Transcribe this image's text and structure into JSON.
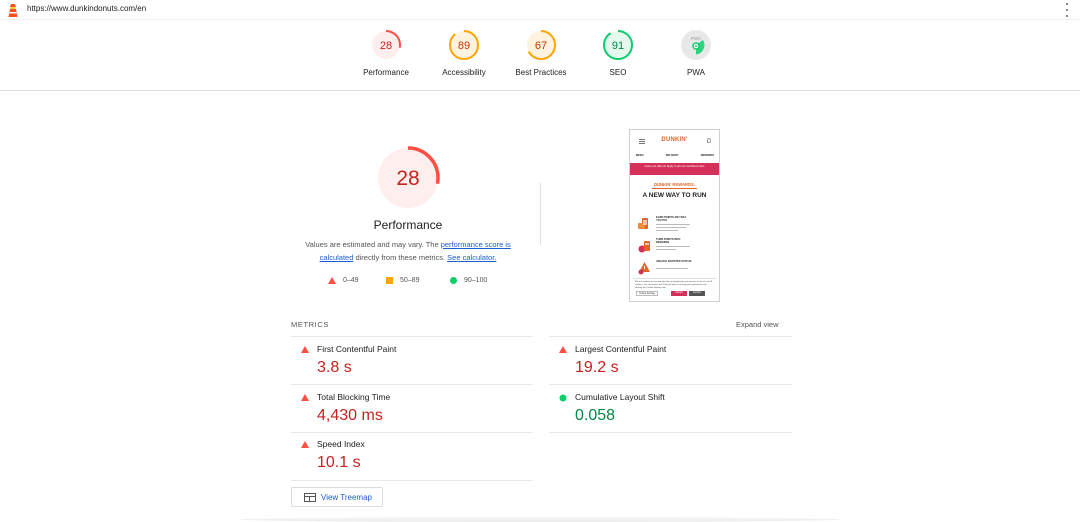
{
  "url": "https://www.dunkindonuts.com/en",
  "colors": {
    "fail": "#ff4e42",
    "fail_text": "#c7221f",
    "average": "#ffa400",
    "pass": "#0cce6b",
    "pass_text": "#018642",
    "link": "#1a5fd0"
  },
  "categories": [
    {
      "key": "performance",
      "label": "Performance",
      "score": 28,
      "status": "fail"
    },
    {
      "key": "accessibility",
      "label": "Accessibility",
      "score": 89,
      "status": "average"
    },
    {
      "key": "best-practices",
      "label": "Best Practices",
      "score": 67,
      "status": "average"
    },
    {
      "key": "seo",
      "label": "SEO",
      "score": 91,
      "status": "pass"
    },
    {
      "key": "pwa",
      "label": "PWA",
      "score": null,
      "status": "pwa",
      "badge": "PWA"
    }
  ],
  "performance": {
    "score": 28,
    "title": "Performance",
    "desc_prefix": "Values are estimated and may vary. The ",
    "desc_link1": "performance score is calculated",
    "desc_middle": " directly from these metrics. ",
    "desc_link2": "See calculator."
  },
  "legend": [
    {
      "shape": "triangle",
      "label": "0–49"
    },
    {
      "shape": "square",
      "label": "50–89"
    },
    {
      "shape": "circle",
      "label": "90–100"
    }
  ],
  "screenshot": {
    "brand": "DUNKIN'",
    "nav": [
      "MENU",
      "DELIVERY",
      "REWARDS"
    ],
    "banner": "Come run with us! Apply to join our workforce here",
    "rewards": "DUNKIN' REWARDS.",
    "headline": "A NEW WAY TO RUN",
    "rows": [
      "EARN POINTS ANY WAY YOU PAY",
      "TURN POINTS INTO REWARDS",
      "UNLOCK BOOSTED STATUS"
    ],
    "cookie_text": "We use cookies on our website. By clicking Accept you consent to the use of all cookies. You can review our Privacy Policy or change your preferences by clicking the Cookie Settings link.",
    "cookie_buttons": [
      "Cookie Settings",
      "Accept",
      "Decline"
    ]
  },
  "metrics_header": "METRICS",
  "expand_label": "Expand view",
  "metrics": [
    {
      "name": "First Contentful Paint",
      "value": "3.8 s",
      "status": "fail"
    },
    {
      "name": "Largest Contentful Paint",
      "value": "19.2 s",
      "status": "fail"
    },
    {
      "name": "Total Blocking Time",
      "value": "4,430 ms",
      "status": "fail"
    },
    {
      "name": "Cumulative Layout Shift",
      "value": "0.058",
      "status": "pass"
    },
    {
      "name": "Speed Index",
      "value": "10.1 s",
      "status": "fail"
    }
  ],
  "treemap_label": "View Treemap"
}
